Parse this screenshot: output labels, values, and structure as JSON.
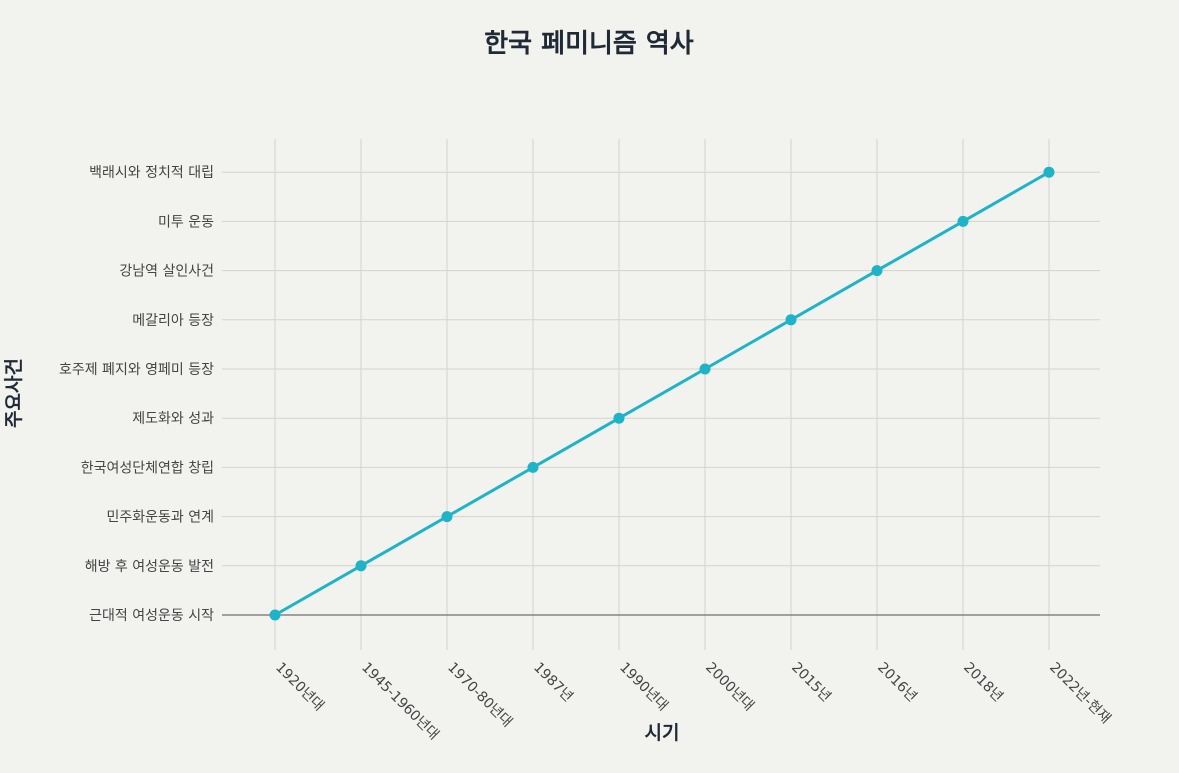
{
  "chart_data": {
    "type": "line",
    "title": "한국 페미니즘 역사",
    "xlabel": "시기",
    "ylabel": "주요사건",
    "categories": [
      "1920년대",
      "1945-1960년대",
      "1970-80년대",
      "1987년",
      "1990년대",
      "2000년대",
      "2015년",
      "2016년",
      "2018년",
      "2022년-현재"
    ],
    "y_categories": [
      "근대적 여성운동 시작",
      "해방 후 여성운동 발전",
      "민주화운동과 연계",
      "한국여성단체연합 창립",
      "제도화와 성과",
      "호주제 폐지와 영페미 등장",
      "메갈리아 등장",
      "강남역 살인사건",
      "미투 운동",
      "백래시와 정치적 대립"
    ],
    "series": [
      {
        "values": [
          "근대적 여성운동 시작",
          "해방 후 여성운동 발전",
          "민주화운동과 연계",
          "한국여성단체연합 창립",
          "제도화와 성과",
          "호주제 폐지와 영페미 등장",
          "메갈리아 등장",
          "강남역 살인사건",
          "미투 운동",
          "백래시와 정치적 대립"
        ]
      }
    ],
    "grid": true,
    "legend": "none",
    "colors": {
      "line": "#1fb3c8",
      "marker": "#1fb3c8",
      "background": "#f2f2ee",
      "grid": "#d3d3cf"
    }
  }
}
